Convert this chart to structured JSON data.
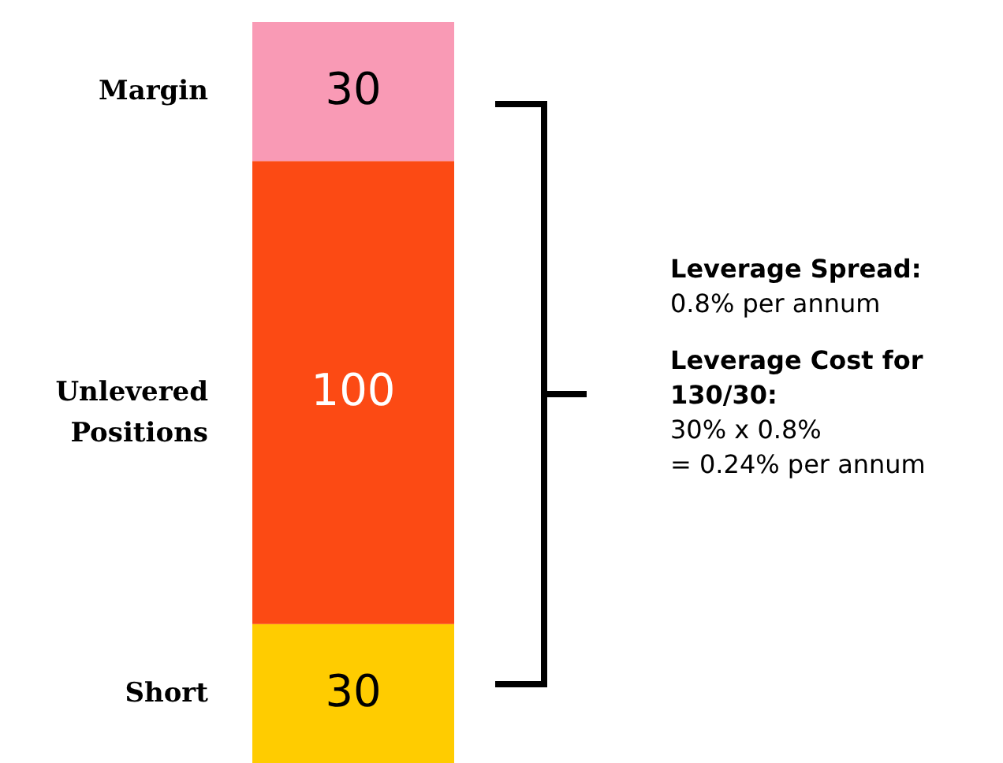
{
  "chart_data": {
    "type": "bar",
    "stacked": true,
    "categories": [
      null
    ],
    "series": [
      {
        "name": "Short",
        "color": "#ffcc00",
        "values": [
          30
        ]
      },
      {
        "name": "Unlevered Positions",
        "color": "#fc4a14",
        "values": [
          100
        ]
      },
      {
        "name": "Margin",
        "color": "#f99ab5",
        "values": [
          30
        ]
      }
    ],
    "data_labels": true,
    "tick_labels": false,
    "annotations": [
      "Leverage Spread:",
      "0.8% per annum",
      "Leverage Cost for 130/30:",
      "30% x 0.8%",
      "= 0.24% per annum"
    ]
  }
}
